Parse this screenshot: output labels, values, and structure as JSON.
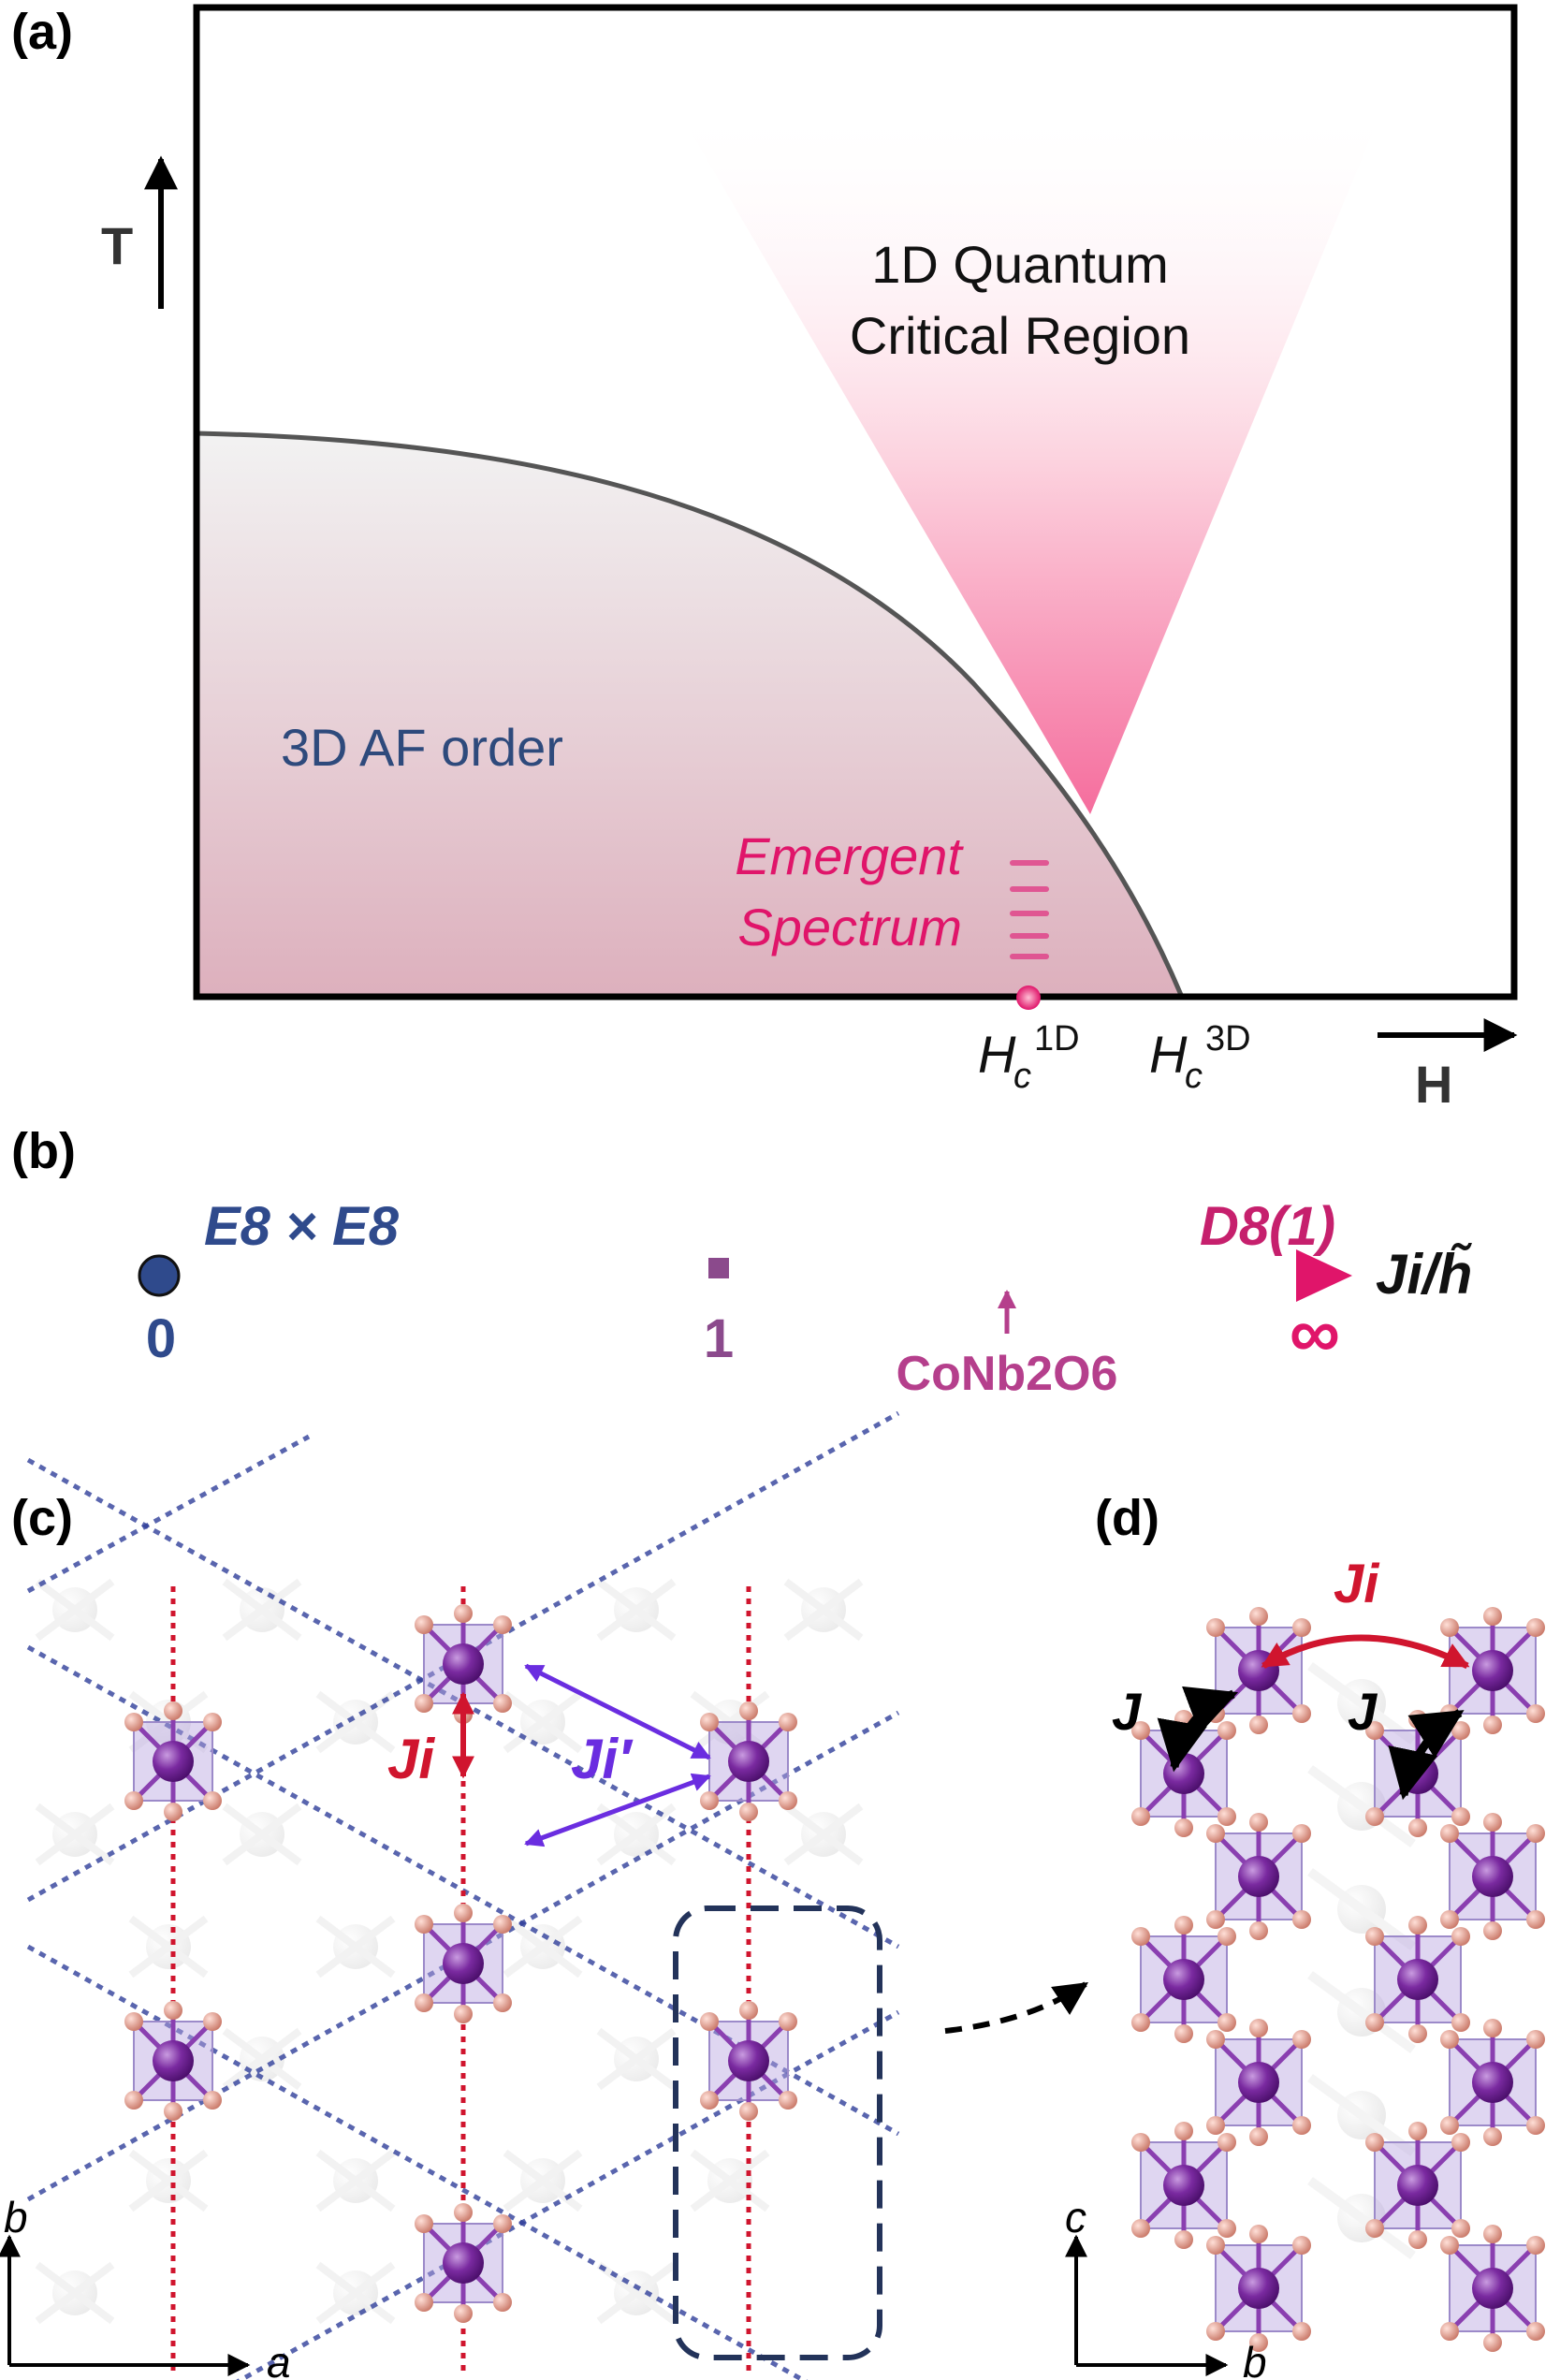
{
  "panel_a": {
    "label": "(a)",
    "t_axis": "T",
    "h_axis": "H",
    "critical_region": [
      "1D Quantum",
      "Critical Region"
    ],
    "af_order": "3D AF order",
    "emergent": [
      "Emergent",
      "Spectrum"
    ],
    "hc1d": {
      "base": "H",
      "sub": "c",
      "sup": "1D"
    },
    "hc3d": {
      "base": "H",
      "sub": "c",
      "sup": "3D"
    }
  },
  "panel_b": {
    "label": "(b)",
    "left_label": "E8 × E8",
    "right_label": "D8(1)",
    "axis_label": "Ji/h̃",
    "ticks": [
      "0",
      "1",
      "∞"
    ],
    "material": "CoNb2O6",
    "colors": {
      "start": "#2f4a8c",
      "end": "#e0156a"
    }
  },
  "panel_c": {
    "label": "(c)",
    "ji": "Ji",
    "ji_prime": "Ji′",
    "axis_x": "a",
    "axis_y": "b"
  },
  "panel_d": {
    "label": "(d)",
    "ji": "Ji",
    "j1": "J",
    "j2": "J",
    "axis_x": "b",
    "axis_y": "c"
  }
}
